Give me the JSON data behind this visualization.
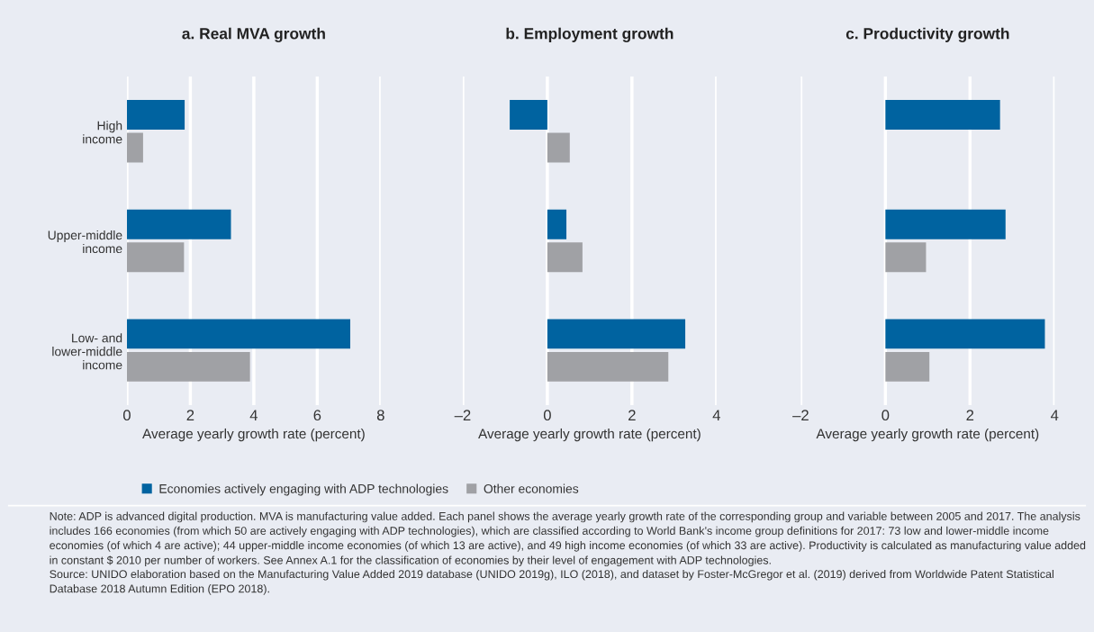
{
  "chart_data": [
    {
      "type": "bar",
      "orientation": "horizontal",
      "title": "a. Real MVA growth",
      "xlabel": "Average yearly growth rate (percent)",
      "categories": [
        "High\nincome",
        "Upper-middle\nincome",
        "Low- and\nlower-middle\nincome"
      ],
      "series": [
        {
          "name": "Economies actively engaging with ADP technologies",
          "color": "#0063a0",
          "values": [
            1.82,
            3.28,
            7.04
          ]
        },
        {
          "name": "Other economies",
          "color": "#a0a1a5",
          "values": [
            0.51,
            1.8,
            3.88
          ]
        }
      ],
      "xlim": [
        0,
        8
      ],
      "xticks": [
        0,
        2,
        4,
        6,
        8
      ],
      "grid": "x",
      "legend": "bottom",
      "annotations": [
        "Note: ADP is advanced digital production. MVA is manufacturing value added. Each panel shows the average yearly growth rate of the corresponding group and variable between 2005 and 2017. The analysis includes 166 economies (from which 50 are actively engaging with ADP technologies), which are classified according to World Bank’s income group definitions for 2017: 73 low and lower-middle income economies (of which 4 are active); 44 upper-middle income economies (of which 13 are active), and 49 high income economies (of which 33 are active). Productivity is calculated as manufacturing value added in constant $ 2010 per number of workers. See Annex A.1 for the classification of economies by their level of engagement with ADP technologies.",
        "Source: UNIDO elaboration based on the Manufacturing Value Added 2019 database (UNIDO 2019g), ILO (2018), and dataset by Foster-McGregor et al. (2019) derived from Worldwide Patent Statistical Database 2018 Autumn Edition (EPO 2018)."
      ]
    },
    {
      "type": "bar",
      "orientation": "horizontal",
      "title": "b. Employment growth",
      "xlabel": "Average yearly growth rate (percent)",
      "categories": [
        null,
        null,
        null
      ],
      "series": [
        {
          "color": "#0063a0",
          "values": [
            -0.89,
            0.45,
            3.26
          ]
        },
        {
          "color": "#a0a1a5",
          "values": [
            0.53,
            0.83,
            2.86
          ]
        }
      ],
      "xlim": [
        -2,
        4
      ],
      "xticks": [
        {
          "value": -2,
          "label": "–2"
        },
        0,
        2,
        4
      ],
      "grid": "x",
      "tick_labels": "x"
    },
    {
      "type": "bar",
      "orientation": "horizontal",
      "title": "c. Productivity growth",
      "xlabel": "Average yearly growth rate (percent)",
      "categories": [
        null,
        null,
        null
      ],
      "series": [
        {
          "color": "#0063a0",
          "values": [
            2.71,
            2.84,
            3.77
          ]
        },
        {
          "color": "#a0a1a5",
          "values": [
            null,
            0.96,
            1.04
          ]
        }
      ],
      "xlim": [
        -2,
        4
      ],
      "xticks": [
        {
          "value": -2,
          "label": "–2"
        },
        0,
        2,
        4
      ],
      "grid": "x",
      "tick_labels": "x"
    }
  ]
}
